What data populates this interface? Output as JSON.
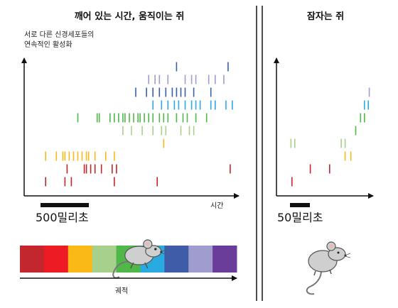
{
  "left_panel": {
    "title": "깨어 있는 시간, 움직이는 쥐",
    "ylabel_line1": "서로 다른 신경세포들의",
    "ylabel_line2": "연속적인 활성화",
    "xlabel": "시간",
    "scalebar_label": "500밀리초",
    "track_label": "궤적",
    "track_colors": [
      "#c1272d",
      "#ed1c24",
      "#fbb917",
      "#a8d08d",
      "#4fb848",
      "#29abe2",
      "#3f5ca8",
      "#a09ccf",
      "#6a3d9a"
    ],
    "mouse_position": 0.55
  },
  "right_panel": {
    "title": "잠자는 쥐",
    "scalebar_label": "50밀리초"
  },
  "raster": {
    "rows": [
      {
        "color": "#c1272d",
        "spikes": [
          0.1,
          0.19,
          0.22,
          0.42,
          0.62
        ]
      },
      {
        "color": "#c1272d",
        "spikes": [
          0.2,
          0.28,
          0.29,
          0.31,
          0.33,
          0.36,
          0.41,
          0.43,
          0.96
        ]
      },
      {
        "color": "#fbb917",
        "spikes": [
          0.1,
          0.15,
          0.18,
          0.19,
          0.21,
          0.23,
          0.25,
          0.27,
          0.29,
          0.3,
          0.33,
          0.38,
          0.42
        ]
      },
      {
        "color": "#fbb917",
        "spikes": [
          0.65
        ]
      },
      {
        "color": "#a8d08d",
        "spikes": [
          0.46,
          0.5,
          0.55,
          0.6,
          0.64,
          0.66,
          0.73,
          0.77,
          0.79
        ]
      },
      {
        "color": "#4fb848",
        "spikes": [
          0.25,
          0.34,
          0.35,
          0.4,
          0.42,
          0.44,
          0.46,
          0.47,
          0.49,
          0.51,
          0.53,
          0.54,
          0.56,
          0.58,
          0.6,
          0.63,
          0.65,
          0.67,
          0.71,
          0.74,
          0.76,
          0.8,
          0.85
        ]
      },
      {
        "color": "#29abe2",
        "spikes": [
          0.6,
          0.64,
          0.67,
          0.7,
          0.72,
          0.75,
          0.78,
          0.8,
          0.82,
          0.87,
          0.89,
          0.94,
          0.97
        ]
      },
      {
        "color": "#3f5ca8",
        "spikes": [
          0.52,
          0.57,
          0.6,
          0.63,
          0.66,
          0.69,
          0.71,
          0.73,
          0.75,
          0.79,
          0.87
        ]
      },
      {
        "color": "#a09ccf",
        "spikes": [
          0.58,
          0.61,
          0.63,
          0.67,
          0.75,
          0.78,
          0.8,
          0.86,
          0.89,
          0.93
        ]
      },
      {
        "color": "#3f5ca8",
        "spikes": [
          0.71,
          0.95
        ]
      }
    ]
  },
  "replay": {
    "rows": [
      {
        "color": "#c1272d",
        "spikes": [
          0.16
        ]
      },
      {
        "color": "#c1272d",
        "spikes": [
          0.35,
          0.55
        ]
      },
      {
        "color": "#fbb917",
        "spikes": [
          0.71,
          0.77
        ]
      },
      {
        "color": "#a8d08d",
        "spikes": [
          0.15,
          0.19,
          0.67,
          0.71
        ]
      },
      {
        "color": "#4fb848",
        "spikes": [
          0.82
        ]
      },
      {
        "color": "#4fb848",
        "spikes": [
          0.87,
          0.91
        ]
      },
      {
        "color": "#29abe2",
        "spikes": [
          0.91,
          0.95
        ]
      },
      {
        "color": "#a09ccf",
        "spikes": [
          0.96
        ]
      }
    ]
  }
}
